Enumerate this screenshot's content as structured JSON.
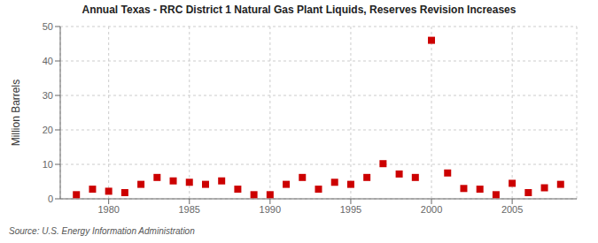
{
  "chart_data": {
    "type": "scatter",
    "title": "Annual Texas - RRC District 1 Natural Gas Plant Liquids, Reserves Revision Increases",
    "ylabel": "Million Barrels",
    "annotation": "Source: U.S. Energy Information Administration",
    "x": [
      1978,
      1979,
      1980,
      1981,
      1982,
      1983,
      1984,
      1985,
      1986,
      1987,
      1988,
      1989,
      1990,
      1991,
      1992,
      1993,
      1994,
      1995,
      1996,
      1997,
      1998,
      1999,
      2000,
      2001,
      2002,
      2003,
      2004,
      2005,
      2006,
      2007,
      2008
    ],
    "values": [
      1.2,
      2.8,
      2.2,
      1.8,
      4.2,
      6.2,
      5.2,
      4.8,
      4.2,
      5.2,
      2.8,
      1.2,
      1.2,
      4.2,
      6.2,
      2.8,
      4.8,
      4.2,
      6.2,
      10.2,
      7.2,
      6.2,
      46.0,
      7.5,
      3.0,
      2.8,
      1.2,
      4.5,
      1.8,
      3.2,
      4.2
    ],
    "color": "#cc0000",
    "marker": "square",
    "grid": true,
    "xlim": [
      1977,
      2009
    ],
    "ylim": [
      0,
      50
    ],
    "xticks": [
      1980,
      1985,
      1990,
      1995,
      2000,
      2005
    ],
    "yticks": [
      0,
      10,
      20,
      30,
      40,
      50
    ]
  }
}
